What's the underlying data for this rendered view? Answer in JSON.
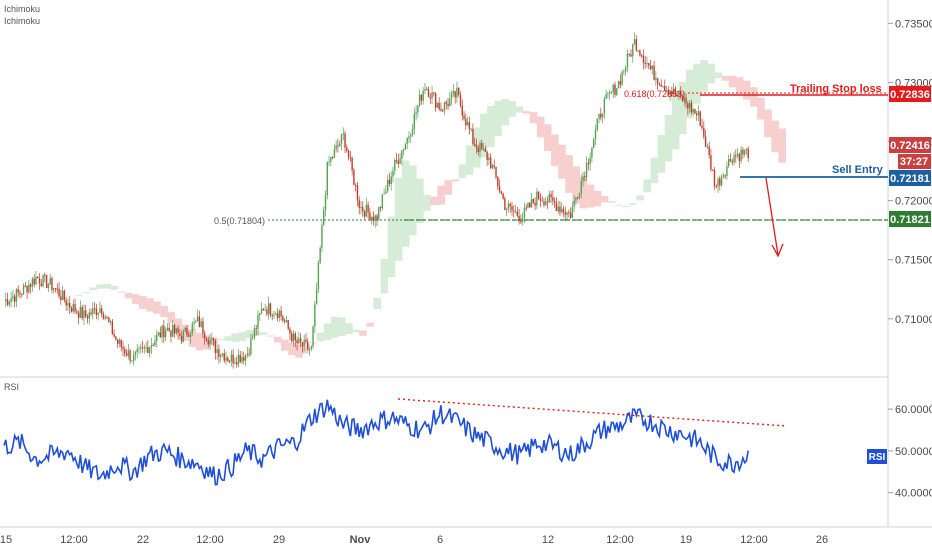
{
  "indicator_labels": [
    "Ichimoku",
    "Ichimoku"
  ],
  "colors": {
    "up": "#53a153",
    "down": "#c0392b",
    "rsi": "#1f4fd6",
    "resistance": "#e31b1b",
    "support": "#2e7d32",
    "entry": "#1c5fa3",
    "cloud_bull": "#d6ecd6",
    "cloud_bear": "#f7cfcf"
  },
  "chart_data": [
    {
      "type": "candlestick",
      "title": "",
      "x_ticks": [
        "15",
        "12:00",
        "22",
        "12:00",
        "29",
        "Nov",
        "6",
        "12",
        "12:00",
        "19",
        "12:00",
        "26"
      ],
      "y_ticks": [
        "0.73500",
        "0.73000",
        "0.72500",
        "0.72000",
        "0.71500",
        "0.71000"
      ],
      "ylim": [
        0.7055,
        0.7363
      ],
      "price_path": [
        0.7115,
        0.7122,
        0.7135,
        0.7128,
        0.7112,
        0.7102,
        0.711,
        0.708,
        0.7066,
        0.7078,
        0.7092,
        0.7085,
        0.7098,
        0.7076,
        0.7066,
        0.707,
        0.711,
        0.7106,
        0.708,
        0.7074,
        0.723,
        0.7255,
        0.7195,
        0.7185,
        0.7225,
        0.7255,
        0.7298,
        0.7278,
        0.729,
        0.725,
        0.7235,
        0.7195,
        0.7186,
        0.7204,
        0.7198,
        0.7188,
        0.723,
        0.728,
        0.73,
        0.7335,
        0.731,
        0.7295,
        0.7285,
        0.727,
        0.7212,
        0.7238,
        0.7241
      ],
      "levels": [
        {
          "label": "Trailing Stop loss",
          "price_tag": "0.72836",
          "fib": "0.618(0.72853)",
          "price": 0.72836
        },
        {
          "label": "Sell Entry",
          "price_tag": "0.72181",
          "price": 0.72181
        },
        {
          "label": "",
          "price_tag": "0.71821",
          "fib": "0.5(0.71804)",
          "price": 0.71821
        }
      ],
      "current_price": "0.72416",
      "countdown": "37:27"
    },
    {
      "type": "line",
      "series": [
        {
          "name": "RSI",
          "values": [
            51,
            52,
            48,
            49,
            50,
            46,
            44,
            47,
            45,
            49,
            50,
            48,
            47,
            44,
            46,
            50,
            48,
            51,
            52,
            58,
            61,
            56,
            55,
            57,
            58,
            56,
            55,
            59,
            57,
            54,
            52,
            50,
            49,
            52,
            51,
            49,
            52,
            55,
            56,
            58,
            57,
            55,
            54,
            52,
            48,
            47,
            49
          ]
        }
      ],
      "y_ticks": [
        "60.0000",
        "50.0000",
        "40.0000"
      ],
      "ylim": [
        33,
        66
      ],
      "label": "RSI",
      "tag": "RSI"
    }
  ]
}
